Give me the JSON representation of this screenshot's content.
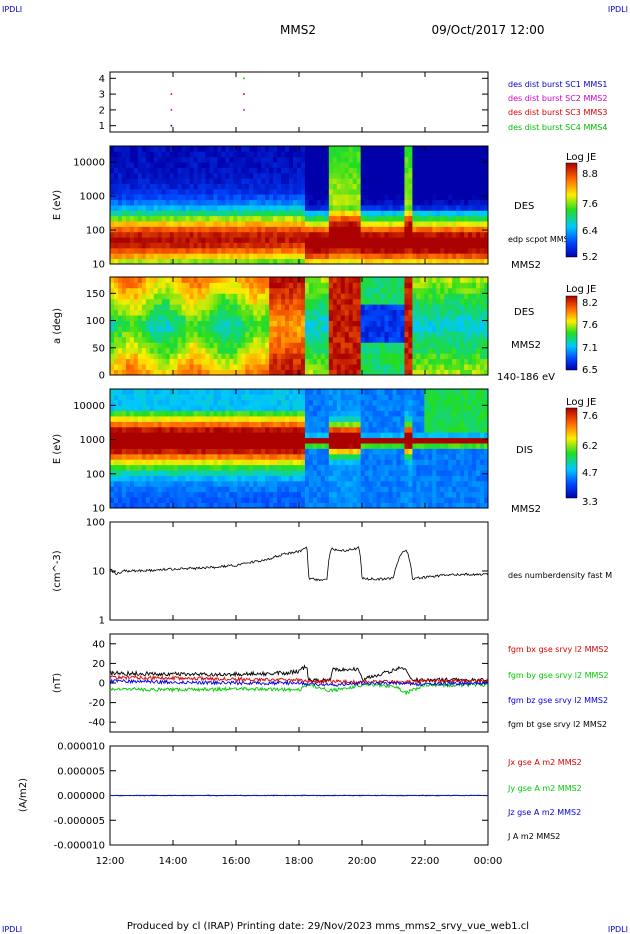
{
  "corner": {
    "tl": "IPDLI",
    "tr": "IPDLI",
    "bl": "IPDLI",
    "br": "IPDLI"
  },
  "header": {
    "spacecraft": "MMS2",
    "date": "09/Oct/2017 12:00"
  },
  "footer": {
    "text": "Produced by cl (IRAP)   Printing date: 29/Nov/2023   mms_mms2_srvy_vue_web1.cl"
  },
  "colors": {
    "sc1": "#0000cc",
    "sc2": "#cc00cc",
    "sc3": "#dd0000",
    "sc4": "#00bb00",
    "bx": "#dd0000",
    "by": "#00cc00",
    "bz": "#0000dd",
    "bt": "#000000"
  },
  "xaxis": {
    "ticks": [
      "12:00",
      "14:00",
      "16:00",
      "18:00",
      "20:00",
      "22:00",
      "00:00"
    ],
    "range_hours": [
      12,
      24
    ]
  },
  "chart_data": [
    {
      "type": "scatter",
      "panel": "burst",
      "yticks": [
        "1",
        "2",
        "3",
        "4"
      ],
      "ylim": [
        0.6,
        4.4
      ],
      "legend": [
        "des dist burst SC1 MMS1",
        "des dist burst SC2 MMS2",
        "des dist burst SC3 MMS3",
        "des dist burst SC4 MMS4"
      ],
      "points": [
        {
          "x": 13.95,
          "y": 1,
          "sc": 1
        },
        {
          "x": 13.95,
          "y": 2,
          "sc": 2
        },
        {
          "x": 13.95,
          "y": 3,
          "sc": 3
        },
        {
          "x": 16.25,
          "y": 2,
          "sc": 2
        },
        {
          "x": 16.25,
          "y": 3,
          "sc": 3
        },
        {
          "x": 16.25,
          "y": 4,
          "sc": 4
        }
      ]
    },
    {
      "type": "heatmap",
      "panel": "des_energy",
      "ylabel": "E (eV)",
      "yticks": [
        "10",
        "100",
        "1000",
        "10000"
      ],
      "ylim": [
        10,
        30000
      ],
      "label": "DES",
      "overlay": "edp scpot MMS2",
      "bottom_label": "MMS2",
      "colorbar": {
        "title": "Log JE",
        "ticks": [
          "8.8",
          "7.6",
          "6.4",
          "5.2"
        ],
        "range": [
          5.2,
          8.8
        ]
      }
    },
    {
      "type": "heatmap",
      "panel": "des_pitch",
      "ylabel": "a (deg)",
      "yticks": [
        "0",
        "50",
        "100",
        "150"
      ],
      "ylim": [
        0,
        180
      ],
      "label": "DES",
      "label2": "MMS2",
      "bottom_label": "140-186 eV",
      "colorbar": {
        "title": "Log JE",
        "ticks": [
          "8.2",
          "7.6",
          "7.1",
          "6.5"
        ],
        "range": [
          6.5,
          8.2
        ]
      }
    },
    {
      "type": "heatmap",
      "panel": "dis_energy",
      "ylabel": "E (eV)",
      "yticks": [
        "10",
        "100",
        "1000",
        "10000"
      ],
      "ylim": [
        10,
        30000
      ],
      "label": "DIS",
      "bottom_label": "MMS2",
      "colorbar": {
        "title": "Log JE",
        "ticks": [
          "7.6",
          "6.2",
          "4.7",
          "3.3"
        ],
        "range": [
          3.3,
          7.6
        ]
      }
    },
    {
      "type": "line",
      "panel": "density",
      "ylabel": "(cm^-3)",
      "yticks": [
        "1",
        "10",
        "100"
      ],
      "ylim": [
        1,
        100
      ],
      "yscale": "log",
      "legend": [
        "des numberdensity fast M"
      ],
      "series": [
        {
          "name": "des numberdensity fast M",
          "x": [
            12.0,
            12.2,
            12.4,
            13.0,
            14.0,
            15.0,
            16.0,
            17.0,
            17.5,
            18.0,
            18.25,
            18.3,
            18.6,
            18.9,
            19.0,
            19.05,
            19.5,
            19.9,
            20.0,
            20.5,
            21.0,
            21.3,
            21.4,
            21.6,
            22.0,
            22.5,
            23.0,
            23.5,
            24.0
          ],
          "y": [
            11,
            8.5,
            10,
            10,
            11,
            11.5,
            13,
            17,
            22,
            25,
            30,
            7,
            6.5,
            7,
            26,
            28,
            26,
            30,
            7,
            6.8,
            7,
            25,
            28,
            7,
            7.5,
            8,
            8.5,
            8.5,
            8.5
          ]
        }
      ]
    },
    {
      "type": "line",
      "panel": "fgm",
      "ylabel": "(nT)",
      "yticks": [
        "-40",
        "-20",
        "0",
        "20",
        "40"
      ],
      "ylim": [
        -50,
        50
      ],
      "legend": [
        "fgm bx gse srvy l2 MMS2",
        "fgm by gse srvy l2 MMS2",
        "fgm bz gse srvy l2 MMS2",
        "fgm bt gse srvy l2 MMS2"
      ],
      "series": [
        {
          "name": "fgm bx gse srvy l2 MMS2",
          "x": [
            12.0,
            14.0,
            16.0,
            18.0,
            18.3,
            19.0,
            20.0,
            21.0,
            22.0,
            24.0
          ],
          "y": [
            6,
            5,
            4,
            3,
            1,
            2,
            1,
            1,
            2,
            2
          ]
        },
        {
          "name": "fgm by gse srvy l2 MMS2",
          "x": [
            12.0,
            14.0,
            16.0,
            18.0,
            18.3,
            19.0,
            20.0,
            21.0,
            21.4,
            22.0,
            24.0
          ],
          "y": [
            -6,
            -7,
            -6,
            -7,
            -2,
            -8,
            -2,
            -3,
            -10,
            -2,
            -2
          ]
        },
        {
          "name": "fgm bz gse srvy l2 MMS2",
          "x": [
            12.0,
            14.0,
            16.0,
            18.0,
            18.3,
            19.0,
            20.0,
            22.0,
            24.0
          ],
          "y": [
            2,
            1,
            0,
            0,
            -1,
            -2,
            0,
            -1,
            0
          ]
        },
        {
          "name": "fgm bt gse srvy l2 MMS2",
          "x": [
            12.0,
            14.0,
            16.0,
            17.5,
            18.0,
            18.25,
            18.3,
            19.0,
            19.05,
            19.9,
            20.0,
            21.3,
            21.6,
            22.0,
            24.0
          ],
          "y": [
            10,
            9,
            9,
            10,
            12,
            18,
            3,
            3,
            14,
            14,
            3,
            16,
            3,
            3,
            3
          ]
        }
      ]
    },
    {
      "type": "line",
      "panel": "current",
      "ylabel": "(A/m2)",
      "yticks": [
        "-0.000010",
        "-0.000005",
        "0.000000",
        "0.000005",
        "0.000010"
      ],
      "ylim": [
        -1e-05,
        1e-05
      ],
      "legend": [
        "Jx gse A m2 MMS2",
        "Jy gse A m2 MMS2",
        "Jz gse A m2 MMS2",
        "J A m2 MMS2"
      ],
      "series": [
        {
          "name": "Jx gse A m2 MMS2",
          "x": [
            12.0,
            24.0
          ],
          "y": [
            0,
            0
          ]
        },
        {
          "name": "Jy gse A m2 MMS2",
          "x": [
            12.0,
            24.0
          ],
          "y": [
            0,
            0
          ]
        },
        {
          "name": "Jz gse A m2 MMS2",
          "x": [
            12.0,
            24.0
          ],
          "y": [
            0,
            0
          ]
        },
        {
          "name": "J A m2 MMS2",
          "x": [
            12.0,
            23.0
          ],
          "y": [
            0,
            0
          ]
        }
      ]
    }
  ]
}
